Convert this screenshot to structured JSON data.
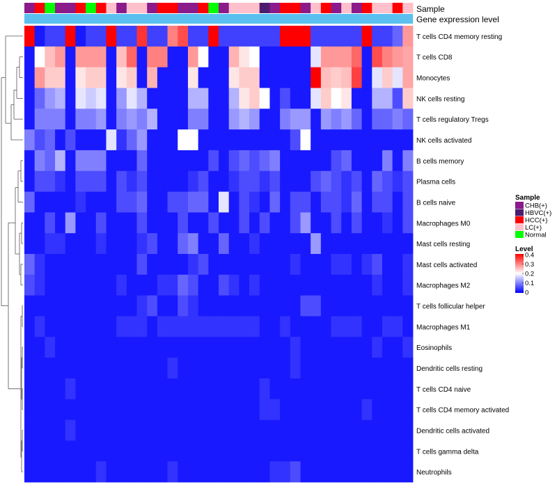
{
  "chart_data": {
    "type": "heatmap",
    "title": "",
    "track_labels": {
      "sample": "Sample",
      "level": "Gene expression level"
    },
    "rows": [
      "T cells CD4 memory resting",
      "T cells CD8",
      "Monocytes",
      "NK cells resting",
      "T cells regulatory  Tregs",
      "NK cells activated",
      "B cells memory",
      "Plasma cells",
      "B cells naive",
      "Macrophages M0",
      "Mast cells resting",
      "Mast cells activated",
      "Macrophages M2",
      "T cells follicular helper",
      "Macrophages M1",
      "Eosinophils",
      "Dendritic cells resting",
      "T cells CD4 naive",
      "T cells CD4 memory activated",
      "Dendritic cells activated",
      "T cells gamma delta",
      "Neutrophils"
    ],
    "sample_groups": [
      "CHB",
      "HCC",
      "Normal",
      "CHB",
      "CHB",
      "HCC",
      "Normal",
      "HCC",
      "LC",
      "CHB",
      "LC",
      "LC",
      "CHB",
      "HCC",
      "HCC",
      "CHB",
      "CHB",
      "HCC",
      "Normal",
      "CHB",
      "LC",
      "LC",
      "LC",
      "HBVC",
      "CHB",
      "HCC",
      "HCC",
      "CHB",
      "LC",
      "HCC",
      "CHB",
      "LC",
      "CHB",
      "HCC",
      "LC",
      "LC",
      "HCC",
      "LC"
    ],
    "legend": {
      "sample_title": "Sample",
      "sample_items": [
        {
          "key": "CHB",
          "label": "CHB(+)",
          "color": "#8b1a8b"
        },
        {
          "key": "HBVC",
          "label": "HBVC(+)",
          "color": "#4b1c6e"
        },
        {
          "key": "HCC",
          "label": "HCC(+)",
          "color": "#ff0000"
        },
        {
          "key": "LC",
          "label": "LC(+)",
          "color": "#ffc0cb"
        },
        {
          "key": "Normal",
          "label": "Normal",
          "color": "#00ff00"
        }
      ],
      "level_title": "Level",
      "level_ticks": [
        "0.4",
        "0.3",
        "0.2",
        "0.1",
        "0"
      ],
      "level_range": [
        0,
        0.4
      ],
      "level_annotation_color": "#5bc0f0"
    },
    "color_scale": {
      "low": "#0000ff",
      "mid": "#ffffff",
      "high": "#ff0000"
    },
    "values": [
      [
        0.4,
        0.02,
        0.05,
        0.05,
        0.4,
        0.02,
        0.05,
        0.05,
        0.4,
        0.05,
        0.05,
        0.36,
        0.05,
        0.05,
        0.3,
        0.34,
        0.05,
        0.05,
        0.4,
        0.05,
        0.05,
        0.05,
        0.05,
        0.05,
        0.05,
        0.4,
        0.4,
        0.4,
        0.05,
        0.05,
        0.05,
        0.05,
        0.05,
        0.4,
        0.05,
        0.05,
        0.08,
        0.28
      ],
      [
        0.02,
        0.2,
        0.25,
        0.28,
        0.02,
        0.28,
        0.28,
        0.28,
        0.02,
        0.25,
        0.32,
        0.02,
        0.3,
        0.3,
        0.02,
        0.02,
        0.28,
        0.2,
        0.02,
        0.02,
        0.26,
        0.22,
        0.2,
        0.02,
        0.02,
        0.02,
        0.02,
        0.02,
        0.18,
        0.28,
        0.28,
        0.28,
        0.32,
        0.02,
        0.34,
        0.3,
        0.28,
        0.27
      ],
      [
        0.02,
        0.28,
        0.24,
        0.24,
        0.02,
        0.22,
        0.24,
        0.24,
        0.02,
        0.22,
        0.24,
        0.02,
        0.26,
        0.02,
        0.02,
        0.02,
        0.22,
        0.02,
        0.02,
        0.02,
        0.22,
        0.24,
        0.24,
        0.02,
        0.02,
        0.02,
        0.02,
        0.02,
        0.4,
        0.25,
        0.24,
        0.25,
        0.35,
        0.02,
        0.18,
        0.24,
        0.18,
        0.27
      ],
      [
        0.02,
        0.08,
        0.12,
        0.14,
        0.02,
        0.18,
        0.16,
        0.18,
        0.02,
        0.12,
        0.18,
        0.14,
        0.02,
        0.02,
        0.02,
        0.02,
        0.14,
        0.14,
        0.02,
        0.02,
        0.14,
        0.22,
        0.24,
        0.2,
        0.02,
        0.06,
        0.02,
        0.02,
        0.18,
        0.24,
        0.2,
        0.22,
        0.02,
        0.02,
        0.14,
        0.14,
        0.06,
        0.24
      ],
      [
        0.02,
        0.1,
        0.1,
        0.1,
        0.02,
        0.1,
        0.1,
        0.12,
        0.02,
        0.1,
        0.12,
        0.1,
        0.14,
        0.02,
        0.02,
        0.02,
        0.1,
        0.1,
        0.02,
        0.02,
        0.12,
        0.14,
        0.12,
        0.02,
        0.02,
        0.1,
        0.12,
        0.12,
        0.02,
        0.12,
        0.1,
        0.12,
        0.08,
        0.02,
        0.08,
        0.08,
        0.1,
        0.08
      ],
      [
        0.1,
        0.06,
        0.08,
        0.02,
        0.06,
        0.02,
        0.02,
        0.02,
        0.18,
        0.04,
        0.08,
        0.12,
        0.02,
        0.02,
        0.02,
        0.2,
        0.2,
        0.02,
        0.02,
        0.02,
        0.02,
        0.02,
        0.02,
        0.02,
        0.02,
        0.02,
        0.06,
        0.2,
        0.02,
        0.02,
        0.02,
        0.02,
        0.02,
        0.02,
        0.02,
        0.02,
        0.02,
        0.02
      ],
      [
        0.02,
        0.1,
        0.08,
        0.14,
        0.02,
        0.1,
        0.1,
        0.1,
        0.02,
        0.02,
        0.02,
        0.08,
        0.02,
        0.02,
        0.02,
        0.02,
        0.02,
        0.02,
        0.06,
        0.02,
        0.06,
        0.08,
        0.06,
        0.08,
        0.1,
        0.02,
        0.02,
        0.02,
        0.02,
        0.02,
        0.06,
        0.08,
        0.02,
        0.02,
        0.02,
        0.1,
        0.02,
        0.1
      ],
      [
        0.02,
        0.06,
        0.06,
        0.04,
        0.02,
        0.06,
        0.06,
        0.06,
        0.02,
        0.06,
        0.04,
        0.06,
        0.02,
        0.02,
        0.02,
        0.02,
        0.04,
        0.06,
        0.02,
        0.02,
        0.04,
        0.06,
        0.06,
        0.04,
        0.06,
        0.02,
        0.02,
        0.02,
        0.06,
        0.08,
        0.06,
        0.04,
        0.06,
        0.02,
        0.08,
        0.06,
        0.04,
        0.06
      ],
      [
        0.08,
        0.02,
        0.02,
        0.02,
        0.02,
        0.04,
        0.02,
        0.02,
        0.02,
        0.06,
        0.06,
        0.08,
        0.02,
        0.02,
        0.06,
        0.06,
        0.08,
        0.08,
        0.02,
        0.18,
        0.02,
        0.06,
        0.04,
        0.02,
        0.08,
        0.02,
        0.06,
        0.06,
        0.02,
        0.06,
        0.06,
        0.04,
        0.08,
        0.02,
        0.06,
        0.06,
        0.02,
        0.06
      ],
      [
        0.02,
        0.02,
        0.06,
        0.02,
        0.12,
        0.02,
        0.02,
        0.06,
        0.02,
        0.02,
        0.02,
        0.06,
        0.02,
        0.02,
        0.02,
        0.06,
        0.02,
        0.02,
        0.06,
        0.02,
        0.02,
        0.06,
        0.02,
        0.06,
        0.02,
        0.02,
        0.06,
        0.12,
        0.02,
        0.02,
        0.06,
        0.02,
        0.06,
        0.02,
        0.02,
        0.04,
        0.02,
        0.06
      ],
      [
        0.02,
        0.02,
        0.04,
        0.04,
        0.02,
        0.02,
        0.02,
        0.04,
        0.02,
        0.02,
        0.02,
        0.04,
        0.06,
        0.02,
        0.02,
        0.08,
        0.1,
        0.02,
        0.02,
        0.08,
        0.02,
        0.02,
        0.04,
        0.02,
        0.02,
        0.02,
        0.02,
        0.02,
        0.12,
        0.02,
        0.02,
        0.02,
        0.02,
        0.02,
        0.02,
        0.02,
        0.02,
        0.02
      ],
      [
        0.08,
        0.04,
        0.02,
        0.02,
        0.02,
        0.02,
        0.02,
        0.02,
        0.02,
        0.02,
        0.02,
        0.06,
        0.02,
        0.02,
        0.02,
        0.02,
        0.04,
        0.06,
        0.02,
        0.02,
        0.02,
        0.02,
        0.02,
        0.02,
        0.02,
        0.02,
        0.04,
        0.02,
        0.02,
        0.02,
        0.04,
        0.04,
        0.02,
        0.04,
        0.06,
        0.02,
        0.02,
        0.04
      ],
      [
        0.06,
        0.04,
        0.02,
        0.02,
        0.02,
        0.02,
        0.02,
        0.02,
        0.02,
        0.04,
        0.02,
        0.02,
        0.02,
        0.04,
        0.04,
        0.08,
        0.06,
        0.02,
        0.02,
        0.06,
        0.04,
        0.02,
        0.04,
        0.02,
        0.02,
        0.02,
        0.02,
        0.02,
        0.02,
        0.02,
        0.02,
        0.02,
        0.02,
        0.02,
        0.04,
        0.02,
        0.02,
        0.04
      ],
      [
        0.02,
        0.02,
        0.02,
        0.02,
        0.02,
        0.02,
        0.02,
        0.02,
        0.02,
        0.02,
        0.02,
        0.04,
        0.06,
        0.02,
        0.02,
        0.06,
        0.04,
        0.02,
        0.02,
        0.02,
        0.02,
        0.02,
        0.02,
        0.02,
        0.02,
        0.02,
        0.02,
        0.06,
        0.06,
        0.02,
        0.02,
        0.02,
        0.02,
        0.02,
        0.02,
        0.02,
        0.02,
        0.02
      ],
      [
        0.02,
        0.04,
        0.02,
        0.02,
        0.02,
        0.02,
        0.02,
        0.02,
        0.02,
        0.04,
        0.04,
        0.04,
        0.02,
        0.04,
        0.04,
        0.04,
        0.04,
        0.04,
        0.04,
        0.04,
        0.04,
        0.04,
        0.04,
        0.02,
        0.02,
        0.04,
        0.02,
        0.02,
        0.02,
        0.02,
        0.04,
        0.04,
        0.04,
        0.02,
        0.02,
        0.04,
        0.04,
        0.02
      ],
      [
        0.02,
        0.02,
        0.04,
        0.02,
        0.02,
        0.02,
        0.02,
        0.02,
        0.02,
        0.02,
        0.02,
        0.02,
        0.02,
        0.02,
        0.02,
        0.02,
        0.02,
        0.02,
        0.02,
        0.02,
        0.02,
        0.02,
        0.02,
        0.02,
        0.02,
        0.02,
        0.04,
        0.02,
        0.02,
        0.02,
        0.02,
        0.02,
        0.02,
        0.02,
        0.04,
        0.02,
        0.02,
        0.04
      ],
      [
        0.02,
        0.02,
        0.02,
        0.02,
        0.02,
        0.02,
        0.02,
        0.02,
        0.02,
        0.02,
        0.02,
        0.02,
        0.02,
        0.02,
        0.04,
        0.02,
        0.02,
        0.02,
        0.02,
        0.02,
        0.02,
        0.02,
        0.02,
        0.02,
        0.02,
        0.02,
        0.04,
        0.02,
        0.02,
        0.02,
        0.02,
        0.02,
        0.02,
        0.02,
        0.02,
        0.02,
        0.02,
        0.02
      ],
      [
        0.02,
        0.02,
        0.02,
        0.02,
        0.04,
        0.02,
        0.02,
        0.02,
        0.02,
        0.02,
        0.02,
        0.02,
        0.02,
        0.02,
        0.02,
        0.02,
        0.02,
        0.02,
        0.02,
        0.02,
        0.02,
        0.02,
        0.02,
        0.04,
        0.02,
        0.02,
        0.02,
        0.02,
        0.02,
        0.02,
        0.02,
        0.02,
        0.02,
        0.02,
        0.02,
        0.02,
        0.02,
        0.02
      ],
      [
        0.02,
        0.02,
        0.02,
        0.02,
        0.02,
        0.02,
        0.02,
        0.02,
        0.02,
        0.02,
        0.02,
        0.02,
        0.02,
        0.02,
        0.02,
        0.02,
        0.02,
        0.02,
        0.02,
        0.02,
        0.02,
        0.02,
        0.02,
        0.04,
        0.04,
        0.02,
        0.02,
        0.02,
        0.02,
        0.02,
        0.02,
        0.02,
        0.02,
        0.04,
        0.02,
        0.02,
        0.02,
        0.02
      ],
      [
        0.02,
        0.02,
        0.02,
        0.02,
        0.04,
        0.02,
        0.02,
        0.02,
        0.02,
        0.02,
        0.02,
        0.02,
        0.02,
        0.02,
        0.02,
        0.02,
        0.02,
        0.02,
        0.02,
        0.02,
        0.02,
        0.02,
        0.02,
        0.02,
        0.02,
        0.02,
        0.02,
        0.02,
        0.02,
        0.02,
        0.02,
        0.02,
        0.02,
        0.02,
        0.02,
        0.02,
        0.02,
        0.02
      ],
      [
        0.02,
        0.02,
        0.02,
        0.02,
        0.02,
        0.02,
        0.02,
        0.02,
        0.02,
        0.02,
        0.02,
        0.02,
        0.02,
        0.02,
        0.02,
        0.02,
        0.02,
        0.02,
        0.02,
        0.02,
        0.02,
        0.02,
        0.02,
        0.02,
        0.02,
        0.02,
        0.02,
        0.02,
        0.02,
        0.02,
        0.02,
        0.02,
        0.02,
        0.02,
        0.02,
        0.02,
        0.02,
        0.02
      ],
      [
        0.02,
        0.02,
        0.02,
        0.02,
        0.02,
        0.02,
        0.02,
        0.04,
        0.02,
        0.02,
        0.02,
        0.02,
        0.02,
        0.02,
        0.04,
        0.02,
        0.02,
        0.02,
        0.02,
        0.02,
        0.02,
        0.02,
        0.02,
        0.02,
        0.04,
        0.04,
        0.06,
        0.02,
        0.02,
        0.02,
        0.02,
        0.02,
        0.02,
        0.02,
        0.02,
        0.02,
        0.02,
        0.02
      ]
    ]
  }
}
